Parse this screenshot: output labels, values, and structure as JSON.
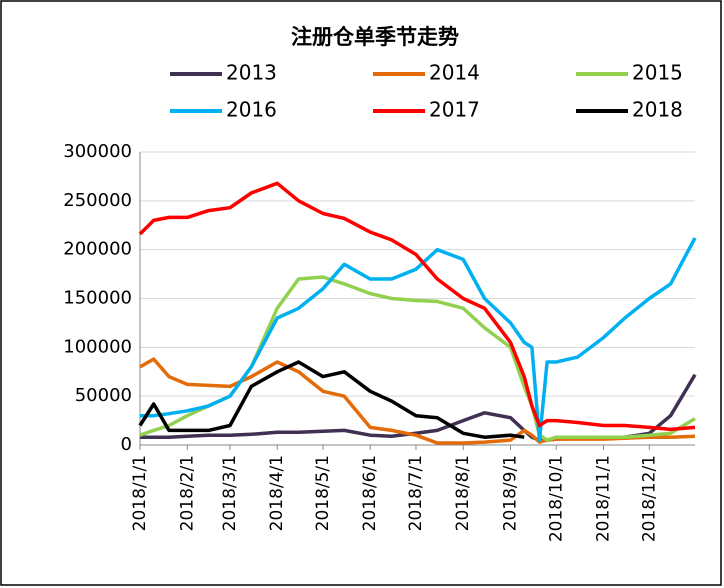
{
  "chart_data": {
    "type": "line",
    "title": "注册仓单季节走势",
    "x": [
      "2018/1/1",
      "2018/1/10",
      "2018/1/20",
      "2018/2/1",
      "2018/2/15",
      "2018/3/1",
      "2018/3/15",
      "2018/4/1",
      "2018/4/15",
      "2018/5/1",
      "2018/5/15",
      "2018/6/1",
      "2018/6/15",
      "2018/7/1",
      "2018/7/15",
      "2018/8/1",
      "2018/8/15",
      "2018/9/1",
      "2018/9/10",
      "2018/9/15",
      "2018/9/20",
      "2018/9/25",
      "2018/10/1",
      "2018/10/15",
      "2018/11/1",
      "2018/11/15",
      "2018/12/1",
      "2018/12/15",
      "2018/12/31"
    ],
    "xlim": [
      "2018/1/1",
      "2018/12/31"
    ],
    "xticks": [
      "2018/1/1",
      "2018/2/1",
      "2018/3/1",
      "2018/4/1",
      "2018/5/1",
      "2018/6/1",
      "2018/7/1",
      "2018/8/1",
      "2018/9/1",
      "2018/10/1",
      "2018/11/1",
      "2018/12/1"
    ],
    "ylim": [
      0,
      300000
    ],
    "yticks": [
      0,
      50000,
      100000,
      150000,
      200000,
      250000,
      300000
    ],
    "grid": true,
    "series": [
      {
        "name": "2013",
        "color": "#403152",
        "values": [
          8000,
          8000,
          8000,
          9000,
          10000,
          10000,
          11000,
          13000,
          13000,
          14000,
          15000,
          10000,
          9000,
          12000,
          15000,
          25000,
          33000,
          28000,
          15000,
          8000,
          5000,
          5000,
          6000,
          7000,
          7000,
          8000,
          12000,
          30000,
          72000
        ]
      },
      {
        "name": "2014",
        "color": "#e36c09",
        "values": [
          80000,
          88000,
          70000,
          62000,
          61000,
          60000,
          70000,
          85000,
          75000,
          55000,
          50000,
          18000,
          15000,
          10000,
          2000,
          2000,
          3000,
          5000,
          15000,
          10000,
          3000,
          5000,
          6000,
          6000,
          6000,
          7000,
          8000,
          8000,
          9000
        ]
      },
      {
        "name": "2015",
        "color": "#92d050",
        "values": [
          10000,
          15000,
          20000,
          30000,
          40000,
          50000,
          80000,
          140000,
          170000,
          172000,
          165000,
          155000,
          150000,
          148000,
          147000,
          140000,
          120000,
          100000,
          60000,
          40000,
          10000,
          5000,
          8000,
          8000,
          8000,
          8000,
          10000,
          12000,
          27000
        ]
      },
      {
        "name": "2016",
        "color": "#00b0f0",
        "values": [
          30000,
          30000,
          32000,
          35000,
          40000,
          50000,
          80000,
          130000,
          140000,
          160000,
          185000,
          170000,
          170000,
          180000,
          200000,
          190000,
          150000,
          125000,
          105000,
          100000,
          5000,
          85000,
          85000,
          90000,
          110000,
          130000,
          150000,
          165000,
          212000
        ]
      },
      {
        "name": "2017",
        "color": "#ff0000",
        "values": [
          216000,
          230000,
          233000,
          233000,
          240000,
          243000,
          258000,
          268000,
          250000,
          237000,
          232000,
          218000,
          210000,
          195000,
          170000,
          150000,
          140000,
          105000,
          70000,
          40000,
          20000,
          25000,
          25000,
          23000,
          20000,
          20000,
          18000,
          16000,
          18000
        ]
      },
      {
        "name": "2018",
        "color": "#000000",
        "values": [
          20000,
          42000,
          15000,
          15000,
          15000,
          20000,
          60000,
          75000,
          85000,
          70000,
          75000,
          55000,
          45000,
          30000,
          28000,
          12000,
          8000,
          10000,
          8000,
          null,
          null,
          null,
          null,
          null,
          null,
          null,
          null,
          null,
          null
        ]
      }
    ]
  }
}
